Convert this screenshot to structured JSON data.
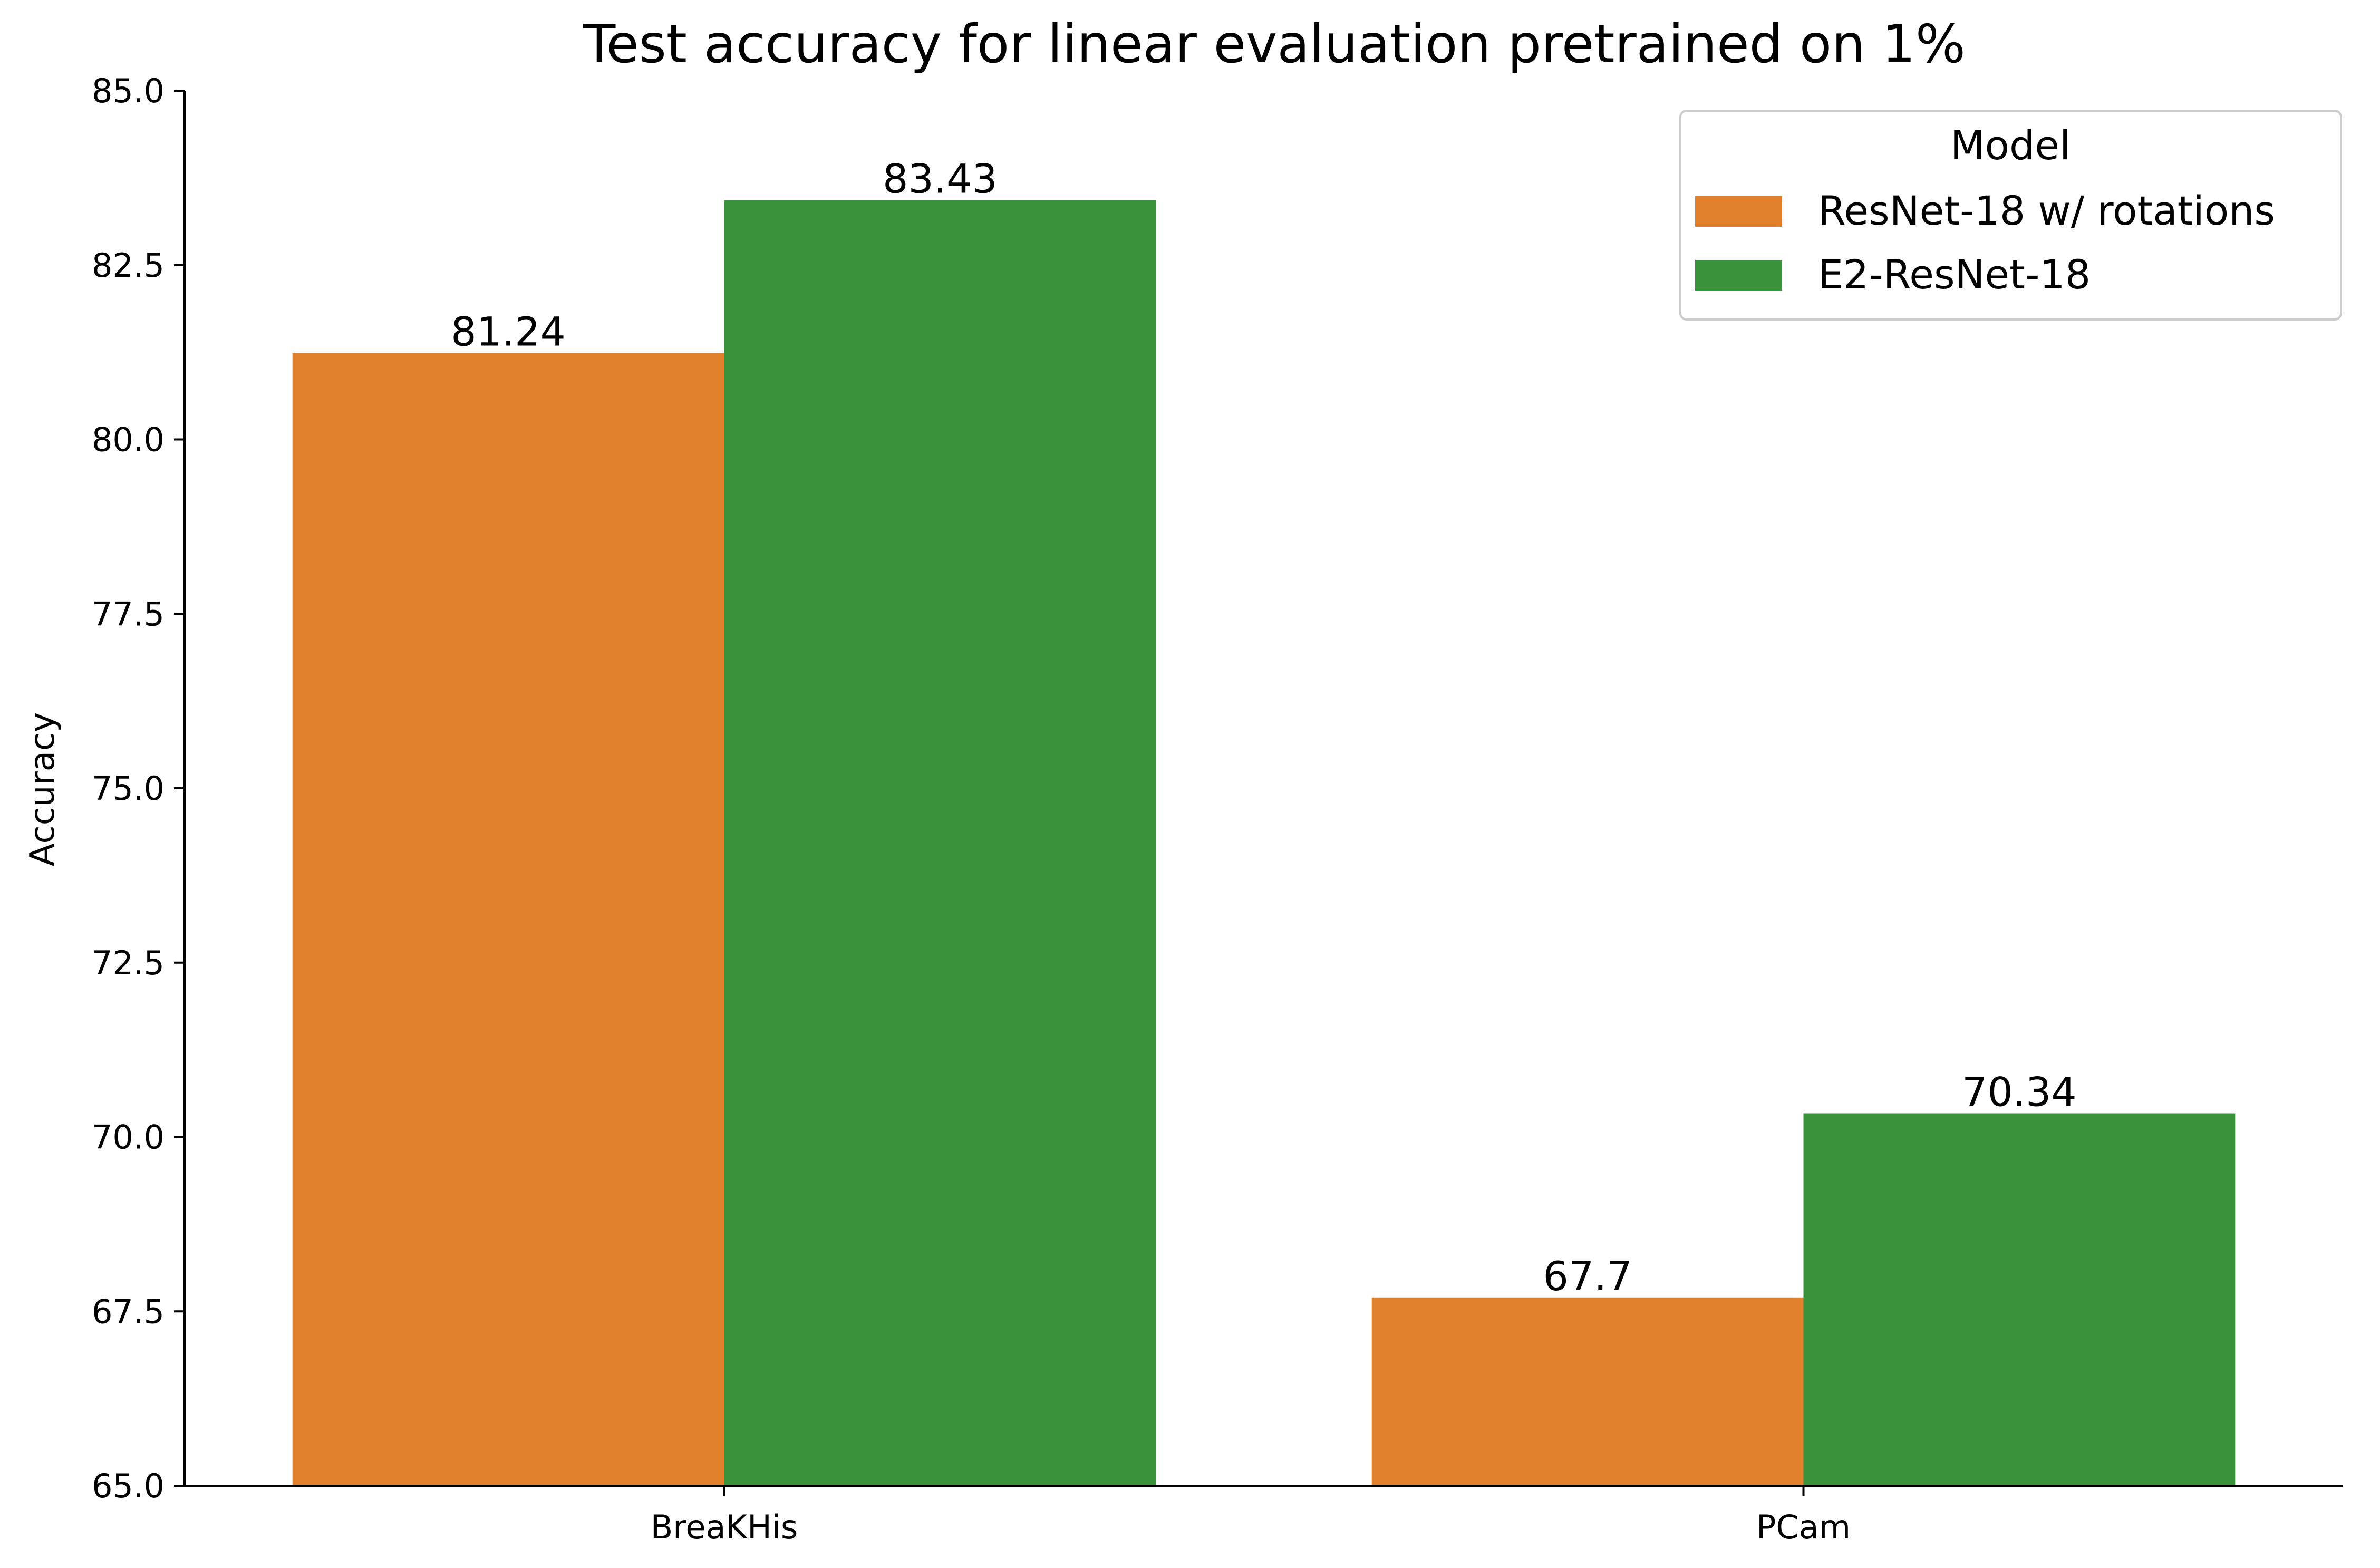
{
  "chart_data": {
    "type": "bar",
    "title": "Test accuracy for linear evaluation pretrained on 1%",
    "xlabel": "",
    "ylabel": "Accuracy",
    "categories": [
      "BreaKHis",
      "PCam"
    ],
    "series": [
      {
        "name": "ResNet-18 w/ rotations",
        "values": [
          81.24,
          67.7
        ],
        "labels": [
          "81.24",
          "67.7"
        ],
        "color": "#e1812c"
      },
      {
        "name": "E2-ResNet-18",
        "values": [
          83.43,
          70.34
        ],
        "labels": [
          "83.43",
          "70.34"
        ],
        "color": "#3a923a"
      }
    ],
    "ylim": [
      65.0,
      85.0
    ],
    "yticks": [
      65.0,
      67.5,
      70.0,
      72.5,
      75.0,
      77.5,
      80.0,
      82.5,
      85.0
    ],
    "ytick_labels": [
      "65.0",
      "67.5",
      "70.0",
      "72.5",
      "75.0",
      "77.5",
      "80.0",
      "82.5",
      "85.0"
    ],
    "legend": {
      "title": "Model",
      "placement": "top-right"
    },
    "grid": false
  }
}
